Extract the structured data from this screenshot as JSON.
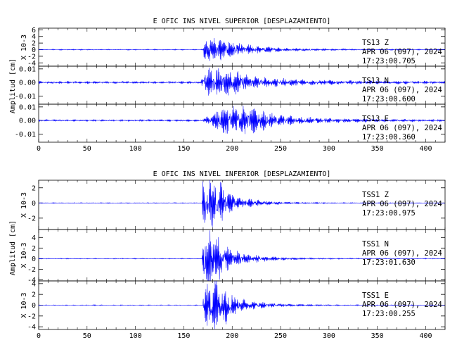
{
  "chart_data": [
    {
      "type": "line",
      "title": "E OFIC INS NIVEL SUPERIOR [DESPLAZAMIENTO]",
      "ylabel": "Amplitud [cm]",
      "xlim": [
        0,
        420
      ],
      "x_ticks": [
        "0",
        "50",
        "100",
        "150",
        "200",
        "250",
        "300",
        "350",
        "400"
      ],
      "grid": false,
      "traces": [
        {
          "station": "TS13",
          "component": "Z",
          "date": "APR 06 (097), 2024",
          "time": "17:23:00.705",
          "scale_label": "X 10-3",
          "ylim": [
            -5,
            6.5
          ],
          "y_ticks": [
            "6",
            "4",
            "2",
            "0",
            "-2",
            "-4"
          ],
          "y_tick_values": [
            6,
            4,
            2,
            0,
            -2,
            -4
          ],
          "onset": 170,
          "peak_time": 172,
          "peak_amplitude": 5.5,
          "secondary_time": null,
          "secondary_amplitude": 0,
          "decay_s": 35,
          "noise": 0.12,
          "secondary_decay_s": 25
        },
        {
          "station": "TS13",
          "component": "N",
          "date": "APR 06 (097), 2024",
          "time": "17:23:00.600",
          "scale_label": "",
          "ylim": [
            -0.016,
            0.012
          ],
          "y_ticks": [
            "0.01",
            "0.00",
            "-0.01"
          ],
          "y_tick_values": [
            0.01,
            0.0,
            -0.01
          ],
          "onset": 168,
          "peak_time": 172,
          "peak_amplitude": 0.009,
          "secondary_time": 195,
          "secondary_amplitude": 0.004,
          "decay_s": 60,
          "noise": 0.0008,
          "secondary_decay_s": 40
        },
        {
          "station": "TS13",
          "component": "E",
          "date": "APR 06 (097), 2024",
          "time": "17:23:00.360",
          "scale_label": "",
          "ylim": [
            -0.016,
            0.012
          ],
          "y_ticks": [
            "0.01",
            "0.00",
            "-0.01"
          ],
          "y_tick_values": [
            0.01,
            0.0,
            -0.01
          ],
          "onset": 168,
          "peak_time": 192,
          "peak_amplitude": 0.01,
          "secondary_time": 215,
          "secondary_amplitude": 0.004,
          "decay_s": 55,
          "noise": 0.0006,
          "secondary_decay_s": 45
        }
      ]
    },
    {
      "type": "line",
      "title": "E OFIC INS NIVEL INFERIOR [DESPLAZAMIENTO]",
      "ylabel": "Amplitud [cm]",
      "xlim": [
        0,
        420
      ],
      "x_ticks": [
        "0",
        "50",
        "100",
        "150",
        "200",
        "250",
        "300",
        "350",
        "400"
      ],
      "grid": false,
      "traces": [
        {
          "station": "TSS1",
          "component": "Z",
          "date": "APR 06 (097), 2024",
          "time": "17:23:00.975",
          "scale_label": "X 10-3",
          "ylim": [
            -3.5,
            3
          ],
          "y_ticks": [
            "2",
            "0",
            "-2"
          ],
          "y_tick_values": [
            2,
            0,
            -2
          ],
          "onset": 169,
          "peak_time": 170,
          "peak_amplitude": 3.0,
          "secondary_time": 182,
          "secondary_amplitude": 1.6,
          "decay_s": 28,
          "noise": 0.04,
          "secondary_decay_s": 25
        },
        {
          "station": "TSS1",
          "component": "N",
          "date": "APR 06 (097), 2024",
          "time": "17:23:01.630",
          "scale_label": "X 10-3",
          "ylim": [
            -4.2,
            5.5
          ],
          "y_ticks": [
            "4",
            "2",
            "0",
            "-2",
            "-4"
          ],
          "y_tick_values": [
            4,
            2,
            0,
            -2,
            -4
          ],
          "onset": 169,
          "peak_time": 171,
          "peak_amplitude": 4.8,
          "secondary_time": 180,
          "secondary_amplitude": 2.0,
          "decay_s": 28,
          "noise": 0.06,
          "secondary_decay_s": 25
        },
        {
          "station": "TSS1",
          "component": "E",
          "date": "APR 06 (097), 2024",
          "time": "17:23:00.255",
          "scale_label": "X 10-3",
          "ylim": [
            -4.5,
            4.5
          ],
          "y_ticks": [
            "4",
            "2",
            "0",
            "-2",
            "-4"
          ],
          "y_tick_values": [
            4,
            2,
            0,
            -2,
            -4
          ],
          "onset": 169,
          "peak_time": 175,
          "peak_amplitude": 3.6,
          "secondary_time": 185,
          "secondary_amplitude": 2.4,
          "decay_s": 30,
          "noise": 0.06,
          "secondary_decay_s": 30
        }
      ]
    }
  ],
  "colors": {
    "trace": "#0000ff",
    "axis": "#000000",
    "background": "#ffffff"
  }
}
